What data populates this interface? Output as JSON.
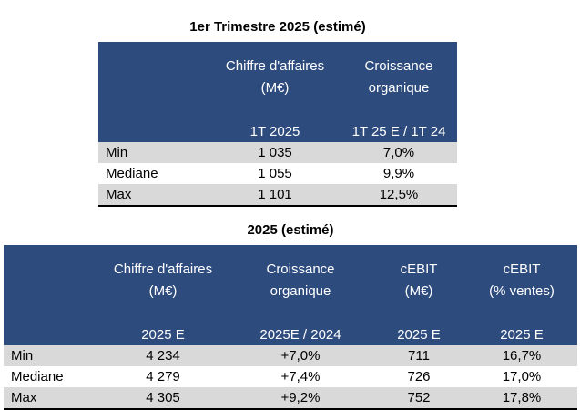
{
  "table1": {
    "title": "1er Trimestre 2025 (estimé)",
    "headers": [
      {
        "line1": "",
        "line2": "",
        "sub": ""
      },
      {
        "line1": "Chiffre d'affaires",
        "line2": "(M€)",
        "sub": "1T 2025"
      },
      {
        "line1": "Croissance",
        "line2": "organique",
        "sub": "1T 25 E / 1T 24"
      }
    ],
    "rows": [
      {
        "label": "Min",
        "values": [
          "1 035",
          "7,0%"
        ]
      },
      {
        "label": "Mediane",
        "values": [
          "1 055",
          "9,9%"
        ]
      },
      {
        "label": "Max",
        "values": [
          "1 101",
          "12,5%"
        ]
      }
    ]
  },
  "table2": {
    "title": "2025 (estimé)",
    "headers": [
      {
        "line1": "",
        "line2": "",
        "sub": ""
      },
      {
        "line1": "Chiffre d'affaires",
        "line2": "(M€)",
        "sub": "2025 E"
      },
      {
        "line1": "Croissance",
        "line2": "organique",
        "sub": "2025E / 2024"
      },
      {
        "line1": "cEBIT",
        "line2": "(M€)",
        "sub": "2025 E"
      },
      {
        "line1": "cEBIT",
        "line2": "(% ventes)",
        "sub": "2025 E"
      }
    ],
    "rows": [
      {
        "label": "Min",
        "values": [
          "4 234",
          "+7,0%",
          "711",
          "16,7%"
        ]
      },
      {
        "label": "Mediane",
        "values": [
          "4 279",
          "+7,4%",
          "726",
          "17,0%"
        ]
      },
      {
        "label": "Max",
        "values": [
          "4 305",
          "+9,2%",
          "752",
          "17,8%"
        ]
      }
    ]
  }
}
